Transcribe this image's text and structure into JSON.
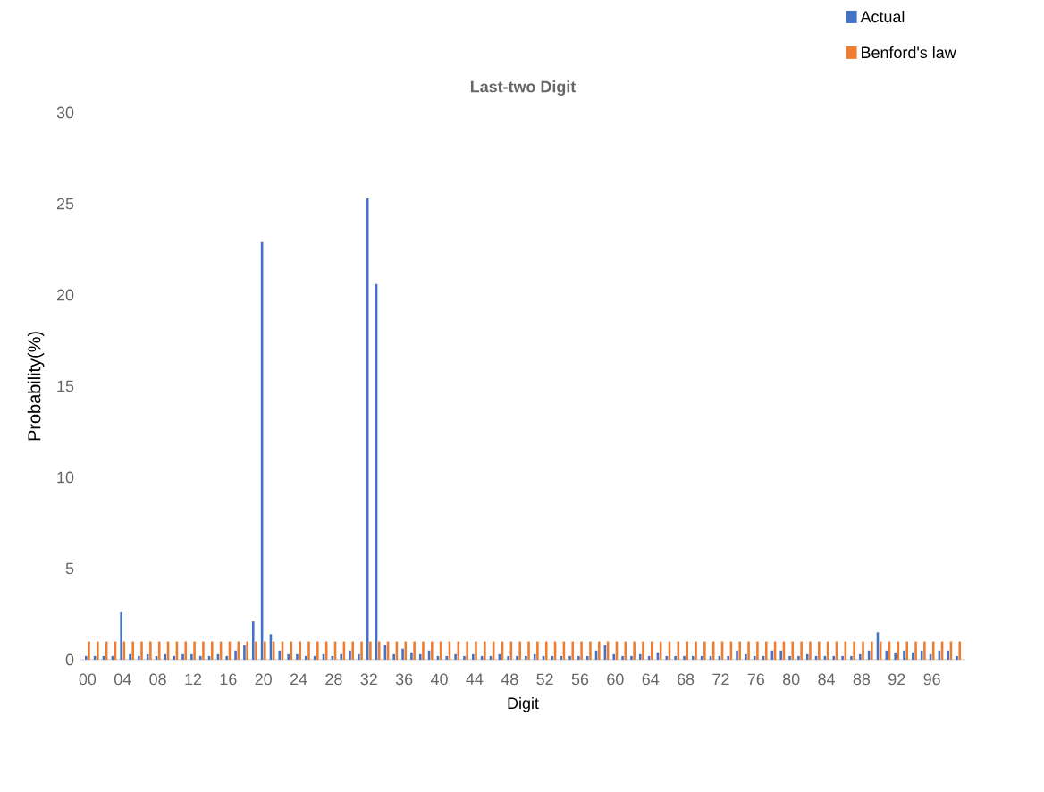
{
  "chart_data": {
    "type": "bar",
    "title": "Last-two Digit",
    "xlabel": "Digit",
    "ylabel": "Probability(%)",
    "categories": [
      "00",
      null,
      null,
      null,
      "04",
      null,
      null,
      null,
      "08",
      null,
      null,
      null,
      "12",
      null,
      null,
      null,
      "16",
      null,
      null,
      null,
      "20",
      null,
      null,
      null,
      "24",
      null,
      null,
      null,
      "28",
      null,
      null,
      null,
      "32",
      null,
      null,
      null,
      "36",
      null,
      null,
      null,
      "40",
      null,
      null,
      null,
      "44",
      null,
      null,
      null,
      "48",
      null,
      null,
      null,
      "52",
      null,
      null,
      null,
      "56",
      null,
      null,
      null,
      "60",
      null,
      null,
      null,
      "64",
      null,
      null,
      null,
      "68",
      null,
      null,
      null,
      "72",
      null,
      null,
      null,
      "76",
      null,
      null,
      null,
      "80",
      null,
      null,
      null,
      "84",
      null,
      null,
      null,
      "88",
      null,
      null,
      null,
      "92",
      null,
      null,
      null,
      "96",
      null,
      null,
      null
    ],
    "series": [
      {
        "name": "Actual",
        "color": "#4472c4",
        "values": [
          0.2,
          0.2,
          0.2,
          0.2,
          2.6,
          0.3,
          0.2,
          0.3,
          0.2,
          0.3,
          0.2,
          0.3,
          0.3,
          0.2,
          0.2,
          0.3,
          0.2,
          0.5,
          0.8,
          2.1,
          22.9,
          1.4,
          0.5,
          0.3,
          0.3,
          0.2,
          0.2,
          0.3,
          0.2,
          0.3,
          0.5,
          0.3,
          25.3,
          20.6,
          0.8,
          0.3,
          0.6,
          0.4,
          0.3,
          0.5,
          0.2,
          0.2,
          0.3,
          0.2,
          0.3,
          0.2,
          0.2,
          0.3,
          0.2,
          0.2,
          0.2,
          0.3,
          0.2,
          0.2,
          0.2,
          0.2,
          0.2,
          0.2,
          0.5,
          0.8,
          0.3,
          0.2,
          0.2,
          0.3,
          0.2,
          0.4,
          0.2,
          0.2,
          0.2,
          0.2,
          0.2,
          0.2,
          0.2,
          0.2,
          0.5,
          0.3,
          0.2,
          0.2,
          0.5,
          0.5,
          0.2,
          0.2,
          0.3,
          0.2,
          0.2,
          0.2,
          0.2,
          0.2,
          0.3,
          0.5,
          1.5,
          0.5,
          0.4,
          0.5,
          0.4,
          0.5,
          0.3,
          0.5,
          0.5,
          0.2
        ]
      },
      {
        "name": "Benford's law",
        "color": "#ed7d31",
        "values": [
          1,
          1,
          1,
          1,
          1,
          1,
          1,
          1,
          1,
          1,
          1,
          1,
          1,
          1,
          1,
          1,
          1,
          1,
          1,
          1,
          1,
          1,
          1,
          1,
          1,
          1,
          1,
          1,
          1,
          1,
          1,
          1,
          1,
          1,
          1,
          1,
          1,
          1,
          1,
          1,
          1,
          1,
          1,
          1,
          1,
          1,
          1,
          1,
          1,
          1,
          1,
          1,
          1,
          1,
          1,
          1,
          1,
          1,
          1,
          1,
          1,
          1,
          1,
          1,
          1,
          1,
          1,
          1,
          1,
          1,
          1,
          1,
          1,
          1,
          1,
          1,
          1,
          1,
          1,
          1,
          1,
          1,
          1,
          1,
          1,
          1,
          1,
          1,
          1,
          1,
          1,
          1,
          1,
          1,
          1,
          1,
          1,
          1,
          1,
          1
        ]
      }
    ],
    "ylim": [
      0,
      30
    ],
    "yticks": [
      0,
      5,
      10,
      15,
      20,
      25,
      30
    ],
    "legend": "top right",
    "grid": false
  }
}
